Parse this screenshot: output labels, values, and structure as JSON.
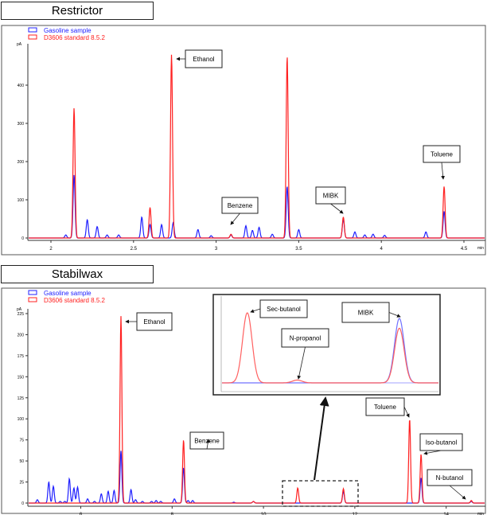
{
  "chart_data": [
    {
      "type": "line",
      "title": "Restrictor",
      "ylabel": "pA",
      "xlabel": "min",
      "xlim": [
        1.85,
        4.65
      ],
      "ylim": [
        -10,
        520
      ],
      "xticks": [
        2,
        2.5,
        3,
        3.5,
        4,
        4.5
      ],
      "yticks": [
        0,
        100,
        200,
        300,
        400
      ],
      "legend": {
        "placement": "top-left",
        "entries": [
          "Gasoline sample",
          "D3606 standard 8.5.2"
        ]
      },
      "series": [
        {
          "name": "Gasoline sample",
          "color": "#2020ff",
          "peaks": [
            [
              2.09,
              8
            ],
            [
              2.14,
              165
            ],
            [
              2.22,
              48
            ],
            [
              2.28,
              30
            ],
            [
              2.34,
              8
            ],
            [
              2.41,
              8
            ],
            [
              2.55,
              55
            ],
            [
              2.6,
              35
            ],
            [
              2.67,
              35
            ],
            [
              2.74,
              40
            ],
            [
              2.89,
              22
            ],
            [
              2.97,
              6
            ],
            [
              3.09,
              8
            ],
            [
              3.18,
              32
            ],
            [
              3.22,
              20
            ],
            [
              3.26,
              28
            ],
            [
              3.34,
              10
            ],
            [
              3.43,
              135
            ],
            [
              3.5,
              22
            ],
            [
              3.77,
              50
            ],
            [
              3.84,
              16
            ],
            [
              3.9,
              8
            ],
            [
              3.95,
              10
            ],
            [
              4.02,
              7
            ],
            [
              4.27,
              16
            ],
            [
              4.38,
              70
            ]
          ]
        },
        {
          "name": "D3606 standard 8.5.2",
          "color": "#ff2020",
          "peaks": [
            [
              2.14,
              340
            ],
            [
              2.6,
              80
            ],
            [
              2.73,
              480
            ],
            [
              3.09,
              10
            ],
            [
              3.43,
              475
            ],
            [
              3.77,
              55
            ],
            [
              4.38,
              135
            ]
          ]
        }
      ],
      "annotations": [
        "Ethanol",
        "Benzene",
        "MIBK",
        "Toluene"
      ]
    },
    {
      "type": "line",
      "title": "Stabilwax",
      "ylabel": "pA",
      "xlabel": "min",
      "xlim": [
        4.8,
        14.95
      ],
      "ylim": [
        -5,
        235
      ],
      "xticks": [
        6,
        8,
        10,
        12,
        14
      ],
      "yticks": [
        0,
        25,
        50,
        75,
        100,
        125,
        150,
        175,
        200,
        225
      ],
      "legend": {
        "placement": "top-left",
        "entries": [
          "Gasoline sample",
          "D3606 standard 8.5.2"
        ]
      },
      "series": [
        {
          "name": "Gasoline sample",
          "color": "#2020ff",
          "peaks": [
            [
              5.05,
              4
            ],
            [
              5.3,
              25
            ],
            [
              5.4,
              20
            ],
            [
              5.55,
              2
            ],
            [
              5.65,
              2
            ],
            [
              5.75,
              29
            ],
            [
              5.85,
              18
            ],
            [
              5.93,
              19
            ],
            [
              6.15,
              5
            ],
            [
              6.3,
              2
            ],
            [
              6.45,
              11
            ],
            [
              6.6,
              14
            ],
            [
              6.73,
              15
            ],
            [
              6.88,
              62
            ],
            [
              7.1,
              16
            ],
            [
              7.2,
              4
            ],
            [
              7.35,
              2
            ],
            [
              7.55,
              2
            ],
            [
              7.65,
              3
            ],
            [
              7.75,
              2
            ],
            [
              8.05,
              5
            ],
            [
              8.25,
              42
            ],
            [
              8.35,
              3
            ],
            [
              8.45,
              3
            ],
            [
              9.35,
              1
            ],
            [
              9.78,
              2
            ],
            [
              11.75,
              14
            ],
            [
              13.45,
              30
            ],
            [
              14.55,
              2
            ]
          ]
        },
        {
          "name": "D3606 standard 8.5.2",
          "color": "#ff2020",
          "peaks": [
            [
              6.88,
              222
            ],
            [
              8.25,
              75
            ],
            [
              9.78,
              2
            ],
            [
              10.75,
              18
            ],
            [
              11.75,
              17
            ],
            [
              13.2,
              100
            ],
            [
              13.45,
              58
            ],
            [
              14.55,
              3
            ]
          ]
        }
      ],
      "annotations": [
        "Ethanol",
        "Benzene",
        "Toluene",
        "Iso-butanol",
        "N-butanol"
      ],
      "inset": {
        "annotations": [
          "Sec-butanol",
          "N-propanol",
          "MIBK"
        ],
        "series": [
          {
            "color": "#ff2020",
            "peaks": [
              [
                0.12,
                1.0
              ],
              [
                0.35,
                0.04
              ],
              [
                0.82,
                0.78
              ]
            ]
          },
          {
            "color": "#2020ff",
            "peaks": [
              [
                0.82,
                0.92
              ]
            ]
          }
        ]
      }
    }
  ]
}
